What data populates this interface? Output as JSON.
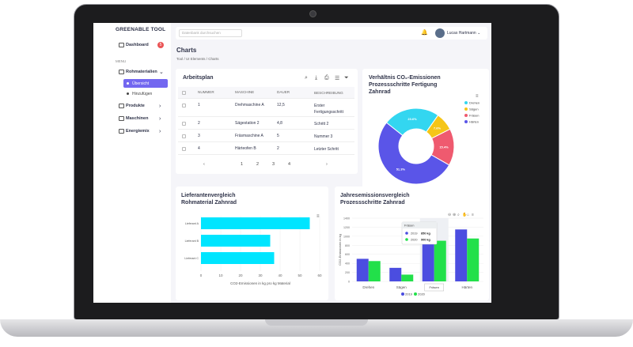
{
  "brand": "GREENABLE TOOL",
  "sidebar": {
    "dashboard": "Dashboard",
    "dashboard_badge": "5",
    "menu_header": "MENU",
    "items": [
      {
        "label": "Rohmaterialien",
        "chev": "⌄"
      },
      {
        "label": "Produkte",
        "chev": "›"
      },
      {
        "label": "Maschinen",
        "chev": "›"
      },
      {
        "label": "Energiemix",
        "chev": "›"
      }
    ],
    "sub": [
      "Übersicht",
      "Hinzufügen"
    ]
  },
  "topbar": {
    "search_placeholder": "Datenbank durchsuchen",
    "user": "Lucas Hartmann",
    "chev": "⌄"
  },
  "page": {
    "title": "Charts",
    "crumb": "Tool  /  UI Elements  /  Charts"
  },
  "table": {
    "title": "Arbeitsplan",
    "headers": [
      "NUMMER",
      "MASCHINE",
      "DAUER",
      "BESCHREIBUNG"
    ],
    "rows": [
      [
        "1",
        "Drehmaschine A",
        "12,5",
        "Erster Fertigungsschritt"
      ],
      [
        "2",
        "Sägestation 2",
        "4,8",
        "Schritt 2"
      ],
      [
        "3",
        "Fräsmaschine A",
        "5",
        "Nummer 3"
      ],
      [
        "4",
        "Härteofen B",
        "2",
        "Letzter Schritt"
      ]
    ],
    "pages": [
      "‹",
      "1",
      "2",
      "3",
      "4",
      "›"
    ]
  },
  "donut": {
    "title": "Verhältnis CO₂-Emissionen Prozessschritte Fertigung Zahnrad",
    "colors": [
      "#33d6f0",
      "#f5c518",
      "#ef5a6f",
      "#5a55e8"
    ],
    "legend": [
      "Drehen",
      "Sägen",
      "Fräsen",
      "Härten"
    ]
  },
  "chart_data": [
    {
      "type": "pie",
      "title": "Verhältnis CO₂-Emissionen Prozessschritte Fertigung Zahnrad",
      "categories": [
        "Drehen",
        "Sägen",
        "Fräsen",
        "Härten"
      ],
      "values": [
        23.6,
        7.6,
        15.4,
        51.3
      ],
      "labels": [
        "23.6%",
        "7.6%",
        "15.4%",
        "51.3%"
      ]
    },
    {
      "type": "bar",
      "orientation": "horizontal",
      "title": "Lieferantenvergleich Rohmaterial Zahnrad",
      "categories": [
        "Lieferant A",
        "Lieferant B",
        "Lieferant C"
      ],
      "values": [
        55,
        35,
        37
      ],
      "xlabel": "CO2-Emissionen in kg pro kg Material",
      "xticks": [
        "0",
        "10",
        "20",
        "30",
        "40",
        "50",
        "60"
      ],
      "xlim": [
        0,
        60
      ],
      "color": "#00e5ff"
    },
    {
      "type": "bar",
      "title": "Jahresemissionsvergleich Prozessschritte Zahnrad",
      "categories": [
        "Drehen",
        "Sägen",
        "Fräsen",
        "Härten"
      ],
      "ylabel": "CO2-Emissionen in kg",
      "yticks": [
        "0",
        "200",
        "400",
        "600",
        "800",
        "1000",
        "1200",
        "1400"
      ],
      "ylim": [
        0,
        1400
      ],
      "series": [
        {
          "name": "2019",
          "values": [
            500,
            300,
            850,
            1150
          ],
          "color": "#4b4de0"
        },
        {
          "name": "2020",
          "values": [
            450,
            150,
            900,
            950
          ],
          "color": "#22e04a"
        }
      ],
      "tooltip": {
        "title": "Fräsen",
        "rows": [
          [
            "2019",
            "850 kg"
          ],
          [
            "2020",
            "900 kg"
          ]
        ]
      },
      "hover_label": "Fräsen"
    }
  ]
}
